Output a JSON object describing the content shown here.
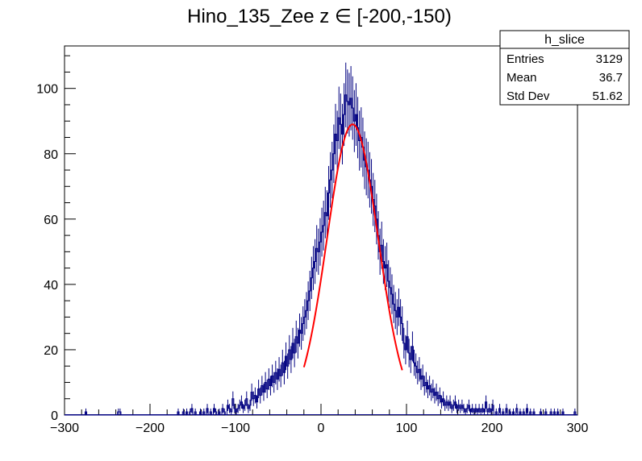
{
  "chart_data": {
    "type": "histogram",
    "title": "Hino_135_Zee z  ∈ [-200,-150)",
    "xlabel": "",
    "ylabel": "",
    "xlim": [
      -300,
      300
    ],
    "ylim": [
      0,
      113
    ],
    "x_major_ticks": [
      -300,
      -200,
      -100,
      0,
      100,
      200,
      300
    ],
    "x_tick_labels": [
      "−300",
      "−200",
      "−100",
      "0",
      "100",
      "200",
      "300"
    ],
    "y_major_ticks": [
      0,
      20,
      40,
      60,
      80,
      100
    ],
    "y_tick_labels": [
      "0",
      "20",
      "40",
      "60",
      "80",
      "100"
    ],
    "grid": false,
    "bin_width": 2,
    "hist_color": "#000080",
    "fit_color": "#ff0000",
    "fit": {
      "function": "gaus",
      "constant": 89,
      "mean": 37,
      "sigma": 30,
      "range": [
        -20,
        95
      ]
    },
    "stats_box": {
      "name": "h_slice",
      "rows": [
        {
          "label": "Entries",
          "value": "3129"
        },
        {
          "label": "Mean",
          "value": "36.7"
        },
        {
          "label": "Std Dev",
          "value": "51.62"
        }
      ]
    },
    "bins": [
      [
        -275,
        1
      ],
      [
        -237,
        1
      ],
      [
        -235,
        1
      ],
      [
        -167,
        1
      ],
      [
        -161,
        1
      ],
      [
        -157,
        1
      ],
      [
        -153,
        1
      ],
      [
        -151,
        2
      ],
      [
        -147,
        1
      ],
      [
        -141,
        1
      ],
      [
        -137,
        1
      ],
      [
        -133,
        2
      ],
      [
        -129,
        1
      ],
      [
        -125,
        2
      ],
      [
        -123,
        1
      ],
      [
        -119,
        1
      ],
      [
        -115,
        2
      ],
      [
        -113,
        1
      ],
      [
        -109,
        3
      ],
      [
        -107,
        2
      ],
      [
        -105,
        1
      ],
      [
        -103,
        5
      ],
      [
        -101,
        2
      ],
      [
        -99,
        1
      ],
      [
        -97,
        2
      ],
      [
        -95,
        3
      ],
      [
        -93,
        4
      ],
      [
        -91,
        2
      ],
      [
        -89,
        3
      ],
      [
        -87,
        5
      ],
      [
        -85,
        2
      ],
      [
        -83,
        3
      ],
      [
        -81,
        7
      ],
      [
        -79,
        5
      ],
      [
        -77,
        6
      ],
      [
        -75,
        4
      ],
      [
        -73,
        8
      ],
      [
        -71,
        6
      ],
      [
        -69,
        9
      ],
      [
        -67,
        7
      ],
      [
        -65,
        10
      ],
      [
        -63,
        8
      ],
      [
        -61,
        11
      ],
      [
        -59,
        9
      ],
      [
        -57,
        12
      ],
      [
        -55,
        10
      ],
      [
        -53,
        13
      ],
      [
        -51,
        11
      ],
      [
        -49,
        14
      ],
      [
        -47,
        12
      ],
      [
        -45,
        16
      ],
      [
        -43,
        13
      ],
      [
        -41,
        18
      ],
      [
        -39,
        15
      ],
      [
        -37,
        20
      ],
      [
        -35,
        17
      ],
      [
        -33,
        22
      ],
      [
        -31,
        19
      ],
      [
        -29,
        24
      ],
      [
        -27,
        22
      ],
      [
        -25,
        26
      ],
      [
        -23,
        25
      ],
      [
        -21,
        28
      ],
      [
        -19,
        30
      ],
      [
        -17,
        32
      ],
      [
        -15,
        35
      ],
      [
        -13,
        38
      ],
      [
        -11,
        42
      ],
      [
        -9,
        45
      ],
      [
        -7,
        47
      ],
      [
        -5,
        51
      ],
      [
        -3,
        50
      ],
      [
        -1,
        53
      ],
      [
        1,
        56
      ],
      [
        3,
        58
      ],
      [
        5,
        62
      ],
      [
        7,
        61
      ],
      [
        9,
        68
      ],
      [
        11,
        72
      ],
      [
        13,
        75
      ],
      [
        15,
        80
      ],
      [
        17,
        86
      ],
      [
        19,
        84
      ],
      [
        21,
        91
      ],
      [
        23,
        89
      ],
      [
        25,
        86
      ],
      [
        27,
        92
      ],
      [
        29,
        98
      ],
      [
        31,
        96
      ],
      [
        33,
        95
      ],
      [
        35,
        97
      ],
      [
        37,
        94
      ],
      [
        39,
        90
      ],
      [
        41,
        92
      ],
      [
        43,
        88
      ],
      [
        45,
        84
      ],
      [
        47,
        85
      ],
      [
        49,
        82
      ],
      [
        51,
        78
      ],
      [
        53,
        76
      ],
      [
        55,
        75
      ],
      [
        57,
        72
      ],
      [
        59,
        70
      ],
      [
        61,
        66
      ],
      [
        63,
        64
      ],
      [
        65,
        60
      ],
      [
        67,
        55
      ],
      [
        69,
        50
      ],
      [
        71,
        52
      ],
      [
        73,
        47
      ],
      [
        75,
        45
      ],
      [
        77,
        46
      ],
      [
        79,
        41
      ],
      [
        81,
        39
      ],
      [
        83,
        37
      ],
      [
        85,
        34
      ],
      [
        87,
        32
      ],
      [
        89,
        30
      ],
      [
        91,
        33
      ],
      [
        93,
        30
      ],
      [
        95,
        28
      ],
      [
        97,
        22
      ],
      [
        99,
        20
      ],
      [
        101,
        24
      ],
      [
        103,
        19
      ],
      [
        105,
        17
      ],
      [
        107,
        21
      ],
      [
        109,
        16
      ],
      [
        111,
        15
      ],
      [
        113,
        13
      ],
      [
        115,
        14
      ],
      [
        117,
        11
      ],
      [
        119,
        12
      ],
      [
        121,
        9
      ],
      [
        123,
        10
      ],
      [
        125,
        8
      ],
      [
        127,
        9
      ],
      [
        129,
        7
      ],
      [
        131,
        8
      ],
      [
        133,
        6
      ],
      [
        135,
        7
      ],
      [
        137,
        5
      ],
      [
        139,
        6
      ],
      [
        141,
        4
      ],
      [
        143,
        5
      ],
      [
        145,
        3
      ],
      [
        147,
        4
      ],
      [
        149,
        3
      ],
      [
        151,
        4
      ],
      [
        153,
        2
      ],
      [
        155,
        3
      ],
      [
        157,
        4
      ],
      [
        159,
        2
      ],
      [
        161,
        3
      ],
      [
        163,
        2
      ],
      [
        165,
        3
      ],
      [
        167,
        2
      ],
      [
        169,
        1
      ],
      [
        171,
        2
      ],
      [
        173,
        3
      ],
      [
        175,
        1
      ],
      [
        177,
        2
      ],
      [
        179,
        1
      ],
      [
        181,
        2
      ],
      [
        183,
        1
      ],
      [
        185,
        2
      ],
      [
        187,
        1
      ],
      [
        189,
        2
      ],
      [
        191,
        1
      ],
      [
        193,
        4
      ],
      [
        195,
        1
      ],
      [
        197,
        2
      ],
      [
        199,
        1
      ],
      [
        201,
        3
      ],
      [
        205,
        1
      ],
      [
        209,
        2
      ],
      [
        213,
        1
      ],
      [
        217,
        2
      ],
      [
        221,
        1
      ],
      [
        225,
        1
      ],
      [
        229,
        2
      ],
      [
        233,
        1
      ],
      [
        237,
        1
      ],
      [
        241,
        2
      ],
      [
        245,
        1
      ],
      [
        249,
        1
      ],
      [
        257,
        1
      ],
      [
        263,
        1
      ],
      [
        269,
        1
      ],
      [
        273,
        1
      ],
      [
        277,
        1
      ],
      [
        283,
        1
      ],
      [
        297,
        1
      ]
    ]
  }
}
